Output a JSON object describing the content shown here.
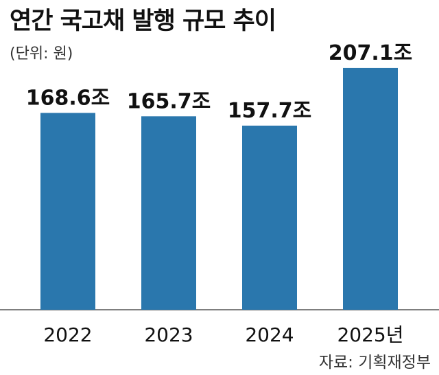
{
  "chart_data": {
    "type": "bar",
    "title": "연간 국고채 발행 규모 추이",
    "unit": "(단위: 원)",
    "source": "자료: 기획재정부",
    "categories": [
      "2022",
      "2023",
      "2024",
      "2025년"
    ],
    "values": [
      168.6,
      165.7,
      157.7,
      207.1
    ],
    "value_labels": [
      "168.6조",
      "165.7조",
      "157.7조",
      "207.1조"
    ],
    "ylim": [
      0,
      230
    ],
    "grid": false,
    "bar_color": "#2a77ad",
    "axis_color": "#555555"
  }
}
